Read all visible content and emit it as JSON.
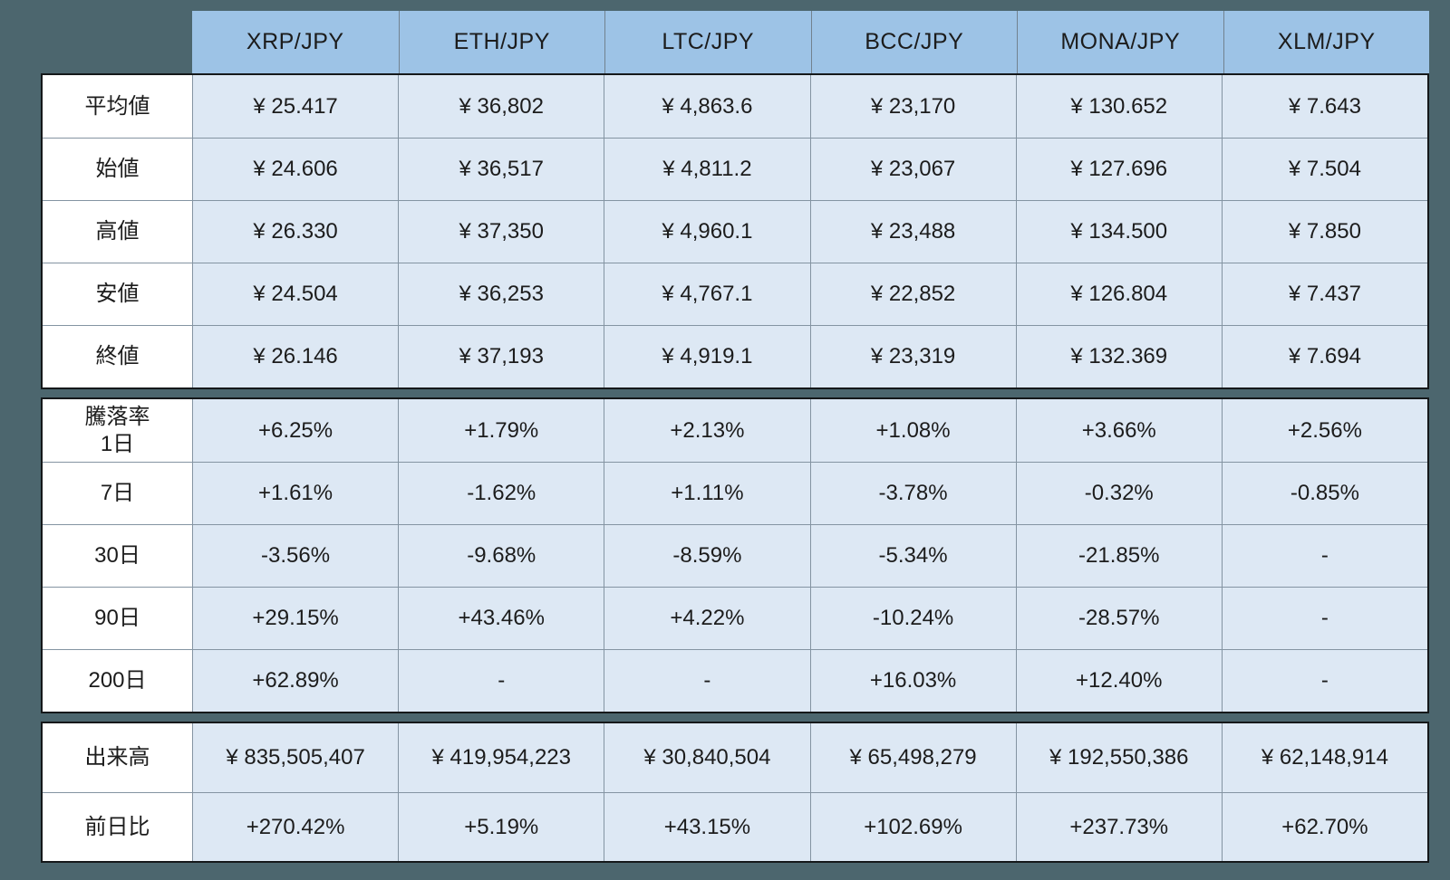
{
  "colors": {
    "background": "#4c666e",
    "header_fill": "#9dc3e6",
    "cell_fill": "#dde8f4",
    "label_fill": "#ffffff",
    "grid_line": "#8494a2",
    "section_border": "#15181a",
    "text": "#1c1c1c"
  },
  "chart_data": {
    "type": "table",
    "columns": [
      "XRP/JPY",
      "ETH/JPY",
      "LTC/JPY",
      "BCC/JPY",
      "MONA/JPY",
      "XLM/JPY"
    ],
    "sections": [
      {
        "name": "prices",
        "rows": [
          {
            "key": "average",
            "label": "平均値",
            "values": [
              "¥ 25.417",
              "¥ 36,802",
              "¥ 4,863.6",
              "¥ 23,170",
              "¥ 130.652",
              "¥ 7.643"
            ]
          },
          {
            "key": "open",
            "label": "始値",
            "values": [
              "¥ 24.606",
              "¥ 36,517",
              "¥ 4,811.2",
              "¥ 23,067",
              "¥ 127.696",
              "¥ 7.504"
            ]
          },
          {
            "key": "high",
            "label": "高値",
            "values": [
              "¥ 26.330",
              "¥ 37,350",
              "¥ 4,960.1",
              "¥ 23,488",
              "¥ 134.500",
              "¥ 7.850"
            ]
          },
          {
            "key": "low",
            "label": "安値",
            "values": [
              "¥ 24.504",
              "¥ 36,253",
              "¥ 4,767.1",
              "¥ 22,852",
              "¥ 126.804",
              "¥ 7.437"
            ]
          },
          {
            "key": "close",
            "label": "終値",
            "values": [
              "¥ 26.146",
              "¥ 37,193",
              "¥ 4,919.1",
              "¥ 23,319",
              "¥ 132.369",
              "¥ 7.694"
            ]
          }
        ]
      },
      {
        "name": "change-rates",
        "rows": [
          {
            "key": "change-1d",
            "label": "騰落率\n1日",
            "values": [
              "+6.25%",
              "+1.79%",
              "+2.13%",
              "+1.08%",
              "+3.66%",
              "+2.56%"
            ]
          },
          {
            "key": "change-7d",
            "label": "7日",
            "values": [
              "+1.61%",
              "-1.62%",
              "+1.11%",
              "-3.78%",
              "-0.32%",
              "-0.85%"
            ]
          },
          {
            "key": "change-30d",
            "label": "30日",
            "values": [
              "-3.56%",
              "-9.68%",
              "-8.59%",
              "-5.34%",
              "-21.85%",
              "-"
            ]
          },
          {
            "key": "change-90d",
            "label": "90日",
            "values": [
              "+29.15%",
              "+43.46%",
              "+4.22%",
              "-10.24%",
              "-28.57%",
              "-"
            ]
          },
          {
            "key": "change-200d",
            "label": "200日",
            "values": [
              "+62.89%",
              "-",
              "-",
              "+16.03%",
              "+12.40%",
              "-"
            ]
          }
        ]
      },
      {
        "name": "volume",
        "rows": [
          {
            "key": "volume",
            "label": "出来高",
            "values": [
              "¥ 835,505,407",
              "¥ 419,954,223",
              "¥ 30,840,504",
              "¥ 65,498,279",
              "¥ 192,550,386",
              "¥ 62,148,914"
            ]
          },
          {
            "key": "prev-day-ratio",
            "label": "前日比",
            "values": [
              "+270.42%",
              "+5.19%",
              "+43.15%",
              "+102.69%",
              "+237.73%",
              "+62.70%"
            ]
          }
        ]
      }
    ]
  }
}
